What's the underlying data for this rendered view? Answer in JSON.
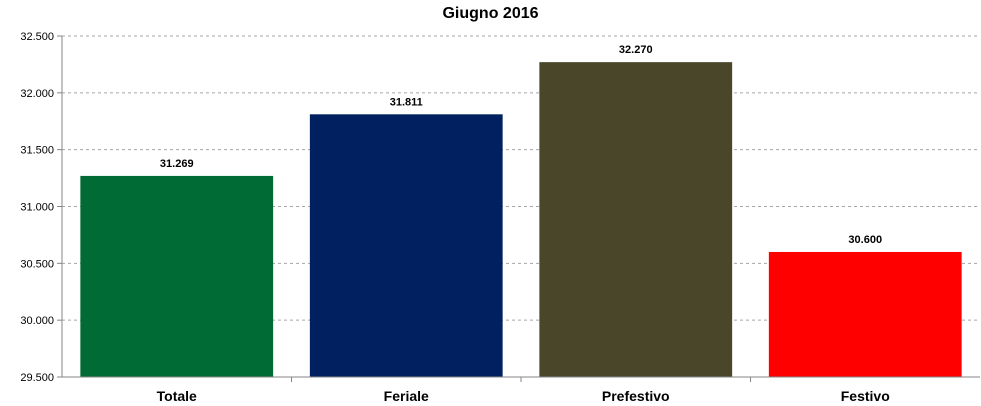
{
  "chart_data": {
    "type": "bar",
    "title": "Giugno 2016",
    "categories": [
      "Totale",
      "Feriale",
      "Prefestivo",
      "Festivo"
    ],
    "values": [
      31269,
      31811,
      32270,
      30600
    ],
    "value_labels": [
      "31.269",
      "31.811",
      "32.270",
      "30.600"
    ],
    "bar_colors": [
      "#006B35",
      "#002060",
      "#4A462A",
      "#FF0000"
    ],
    "ylim": [
      29500,
      32500
    ],
    "yticks": [
      29500,
      30000,
      30500,
      31000,
      31500,
      32000,
      32500
    ],
    "ytick_labels": [
      "29.500",
      "30.000",
      "30.500",
      "31.000",
      "31.500",
      "32.000",
      "32.500"
    ],
    "grid": true,
    "legend": "none",
    "xlabel": "",
    "ylabel": ""
  }
}
